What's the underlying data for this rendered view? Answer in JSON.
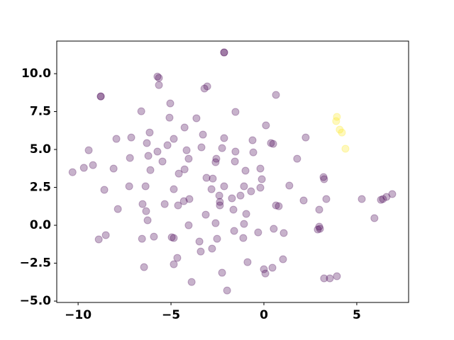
{
  "chart_data": {
    "type": "scatter",
    "xlim": [
      -11.15,
      7.79
    ],
    "ylim": [
      -5.09,
      12.15
    ],
    "xticks": [
      {
        "value": -10,
        "label": "−10"
      },
      {
        "value": -5,
        "label": "−5"
      },
      0,
      5
    ],
    "yticks": [
      {
        "value": -5,
        "label": "−5.0"
      },
      {
        "value": -2.5,
        "label": "−2.5"
      },
      {
        "value": 0,
        "label": "0.0"
      },
      {
        "value": 2.5,
        "label": "2.5"
      },
      {
        "value": 5,
        "label": "5.0"
      },
      {
        "value": 7.5,
        "label": "7.5"
      },
      {
        "value": 10,
        "label": "10.0"
      }
    ],
    "grid": false,
    "series": [
      {
        "color": "#440154",
        "x": [
          -2.14,
          -2.14,
          -8.78,
          -8.78,
          -5.73,
          -5.65,
          -5.65,
          -3.2,
          -3.05,
          0.65,
          -6.6,
          -1.53,
          -5.04,
          -5.08,
          -3.63,
          -7.14,
          -7.94,
          -6.15,
          -4.27,
          -3.28,
          0.11,
          2.25,
          -9.43,
          -4.85,
          -2.14,
          -0.61,
          0.38,
          0.5,
          -6.3,
          -5.19,
          -5.73,
          -3.36,
          -2.25,
          -4.16,
          -0.57,
          -1.53,
          -6.22,
          -7.21,
          -4.05,
          -5.46,
          -2.56,
          -2.6,
          -1.56,
          1.79,
          -9.2,
          -9.69,
          -10.3,
          -8.09,
          -6.11,
          -4.27,
          -4.58,
          -0.19,
          -0.99,
          -3.09,
          -2.75,
          -0.11,
          3.21,
          3.24,
          -7.25,
          -6.37,
          -2.14,
          -1.07,
          -0.19,
          1.37,
          -8.59,
          -4.85,
          -2.82,
          -2.4,
          -1.26,
          -0.69,
          -4.01,
          -4.31,
          -1.72,
          -2.37,
          -2.37,
          -5.34,
          -6.53,
          -4.62,
          0.65,
          0.8,
          2.14,
          3.36,
          5.27,
          6.3,
          6.41,
          6.6,
          6.91,
          -7.86,
          -6.34,
          -1.64,
          2.98,
          -3.13,
          -0.95,
          -6.26,
          -2.6,
          -1.07,
          5.95,
          -4.05,
          -8.51,
          -8.89,
          -6.56,
          -5.92,
          -4.96,
          -4.85,
          -1.6,
          -0.31,
          0.53,
          1.07,
          2.98,
          3.02,
          2.9,
          -1.11,
          -2.52,
          -3.47,
          -2.79,
          -3.4,
          -4.66,
          1.03,
          -0.88,
          -4.85,
          -6.45,
          0.46,
          0,
          0.08,
          -2.25,
          3.93,
          3.55,
          3.24,
          -3.89,
          -1.98
        ],
        "values": [
          11.4,
          11.4,
          8.5,
          8.5,
          9.81,
          9.72,
          9.25,
          9.02,
          9.16,
          8.6,
          7.52,
          7.48,
          8.04,
          7.1,
          7.06,
          5.79,
          5.7,
          6.12,
          6.45,
          5.98,
          6.59,
          5.79,
          4.95,
          5.7,
          5.75,
          5.61,
          5.42,
          5.37,
          5.42,
          5.28,
          4.86,
          5.14,
          5.09,
          4.95,
          4.81,
          4.86,
          4.58,
          4.44,
          4.39,
          4.21,
          4.39,
          4.16,
          4.21,
          4.39,
          3.97,
          3.79,
          3.5,
          3.74,
          3.64,
          3.69,
          3.41,
          3.74,
          3.6,
          3.13,
          3.08,
          3.04,
          3.18,
          3.04,
          2.57,
          2.57,
          2.57,
          2.57,
          2.48,
          2.62,
          2.34,
          2.38,
          2.38,
          1.96,
          1.96,
          2.24,
          1.73,
          1.59,
          1.78,
          1.54,
          1.31,
          1.4,
          1.4,
          1.31,
          1.31,
          1.26,
          1.64,
          1.73,
          1.73,
          1.68,
          1.73,
          1.87,
          2.06,
          1.07,
          0.93,
          1.03,
          1.03,
          0.7,
          0.75,
          0.33,
          0.14,
          0.09,
          0.47,
          0,
          -0.65,
          -0.93,
          -0.89,
          -0.75,
          -0.79,
          -0.84,
          -0.37,
          -0.47,
          -0.23,
          -0.51,
          -0.09,
          -0.23,
          -0.28,
          -0.84,
          -0.89,
          -1.07,
          -1.54,
          -1.73,
          -2.15,
          -2.24,
          -2.43,
          -2.57,
          -2.76,
          -2.8,
          -2.9,
          -3.18,
          -3.13,
          -3.36,
          -3.5,
          -3.5,
          -3.74,
          -4.3
        ]
      },
      {
        "color": "#fde725",
        "x": [
          3.93,
          3.89,
          4.08,
          4.2,
          4.39
        ],
        "values": [
          7.15,
          6.87,
          6.31,
          6.12,
          5.05
        ]
      }
    ]
  }
}
